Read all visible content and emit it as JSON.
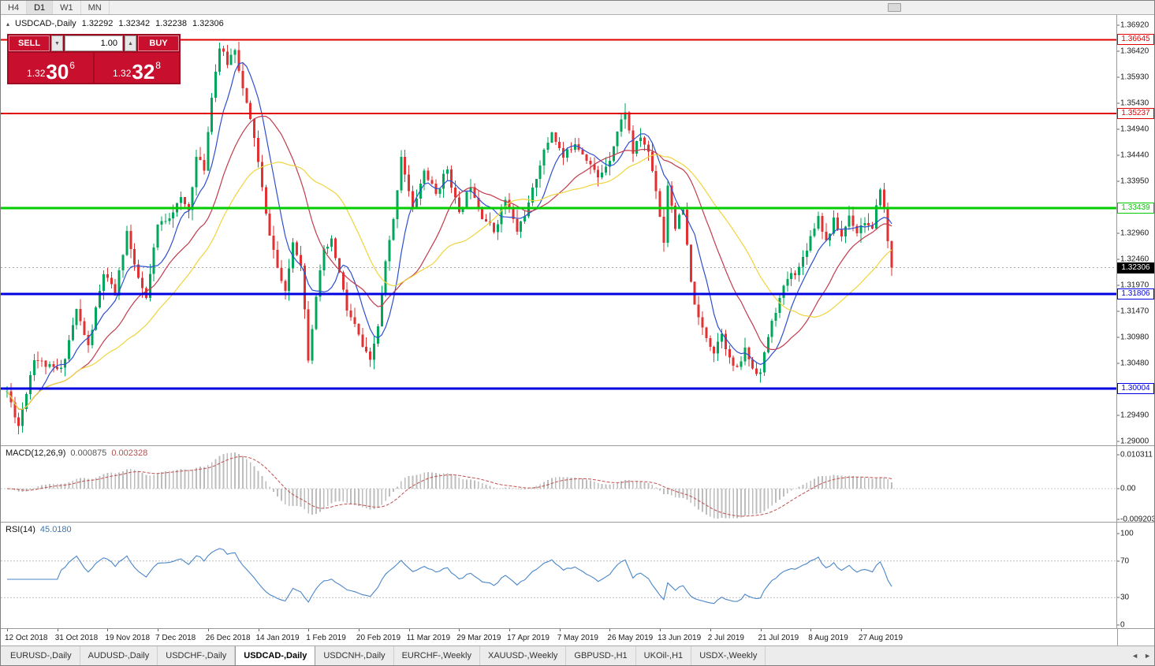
{
  "colors": {
    "up": "#00a65a",
    "down": "#e03232",
    "ma_fast": "#2e4fd0",
    "ma_mid": "#c23b4b",
    "ma_slow": "#f0d43c",
    "line_red": "#e00000",
    "line_green": "#00cc00",
    "line_blue": "#0000e0",
    "current_line": "#aaaaaa",
    "macd_hist": "#bdbdbd",
    "macd_signal": "#c05050",
    "rsi_line": "#4a86c8",
    "rsi_level": "#bbbbbb"
  },
  "icons": {
    "chart_collapse": "▴",
    "spin_down": "▼",
    "spin_up": "▲",
    "scroll_left": "◄",
    "scroll_right": "►"
  },
  "toolbar": {
    "timeframes": [
      {
        "label": "H4",
        "active": false
      },
      {
        "label": "D1",
        "active": true
      },
      {
        "label": "W1",
        "active": false
      },
      {
        "label": "MN",
        "active": false
      }
    ]
  },
  "chart_header": {
    "symbol_period": "USDCAD-,Daily",
    "open": "1.32292",
    "high": "1.32342",
    "low": "1.32238",
    "close": "1.32306"
  },
  "trade_panel": {
    "sell_label": "SELL",
    "buy_label": "BUY",
    "volume": "1.00",
    "sell_price": {
      "prefix": "1.32",
      "main": "30",
      "pip": "6"
    },
    "buy_price": {
      "prefix": "1.32",
      "main": "32",
      "pip": "8"
    }
  },
  "price_axis_labels": [
    "1.36920",
    "1.36420",
    "1.35930",
    "1.35430",
    "1.34940",
    "1.34440",
    "1.33950",
    "1.33450",
    "1.32960",
    "1.32460",
    "1.31970",
    "1.31470",
    "1.30980",
    "1.30480",
    "1.29990",
    "1.29490",
    "1.29000"
  ],
  "hlines": [
    {
      "label": "1.36645",
      "value": 1.36645,
      "color_key": "line_red",
      "width": 2
    },
    {
      "label": "1.35237",
      "value": 1.35237,
      "color_key": "line_red",
      "width": 2
    },
    {
      "label": "1.33439",
      "value": 1.33439,
      "color_key": "line_green",
      "width": 3
    },
    {
      "label": "1.31806",
      "value": 1.31806,
      "color_key": "line_blue",
      "width": 3
    },
    {
      "label": "1.30004",
      "value": 1.30004,
      "color_key": "line_blue",
      "width": 3
    }
  ],
  "current_price": {
    "label": "1.32306",
    "value": 1.32306
  },
  "indicators": {
    "macd": {
      "label": "MACD(12,26,9)",
      "value_main": "0.000875",
      "value_signal": "0.002328",
      "fast": 12,
      "slow": 26,
      "signal": 9,
      "axis": [
        {
          "text": "0.010311",
          "value": 0.010311
        },
        {
          "text": "0.00",
          "value": 0
        },
        {
          "text": "-0.0092030",
          "value": -0.009203
        }
      ]
    },
    "rsi": {
      "label": "RSI(14)",
      "value": "45.0180",
      "period": 14,
      "levels": [
        70,
        30
      ],
      "axis": [
        {
          "text": "100",
          "value": 100
        },
        {
          "text": "70",
          "value": 70
        },
        {
          "text": "30",
          "value": 30
        },
        {
          "text": "0",
          "value": 0
        }
      ]
    }
  },
  "date_axis": {
    "tick_every": 13,
    "labels": [
      "12 Oct 2018",
      "31 Oct 2018",
      "19 Nov 2018",
      "7 Dec 2018",
      "26 Dec 2018",
      "14 Jan 2019",
      "1 Feb 2019",
      "20 Feb 2019",
      "11 Mar 2019",
      "29 Mar 2019",
      "17 Apr 2019",
      "7 May 2019",
      "26 May 2019",
      "13 Jun 2019",
      "2 Jul 2019",
      "21 Jul 2019",
      "8 Aug 2019",
      "27 Aug 2019"
    ]
  },
  "tabs": {
    "items": [
      {
        "label": "EURUSD-,Daily",
        "active": false
      },
      {
        "label": "AUDUSD-,Daily",
        "active": false
      },
      {
        "label": "USDCHF-,Daily",
        "active": false
      },
      {
        "label": "USDCAD-,Daily",
        "active": true
      },
      {
        "label": "USDCNH-,Daily",
        "active": false
      },
      {
        "label": "EURCHF-,Weekly",
        "active": false
      },
      {
        "label": "XAUUSD-,Weekly",
        "active": false
      },
      {
        "label": "GBPUSD-,H1",
        "active": false
      },
      {
        "label": "UKOil-,H1",
        "active": false
      },
      {
        "label": "USDX-,Weekly",
        "active": false
      }
    ]
  },
  "chart_data": {
    "type": "candlestick",
    "symbol": "USDCAD",
    "timeframe": "Daily",
    "candle_count": 230,
    "ylim": [
      1.29,
      1.3692
    ],
    "last_close": 1.32306,
    "noise": 0.0014,
    "wick": 0.0019,
    "seed": 11,
    "price_anchors": [
      [
        0,
        1.2995
      ],
      [
        3,
        1.293
      ],
      [
        7,
        1.306
      ],
      [
        11,
        1.304
      ],
      [
        14,
        1.3035
      ],
      [
        18,
        1.315
      ],
      [
        21,
        1.308
      ],
      [
        25,
        1.322
      ],
      [
        28,
        1.318
      ],
      [
        31,
        1.33
      ],
      [
        33,
        1.323
      ],
      [
        36,
        1.317
      ],
      [
        39,
        1.331
      ],
      [
        42,
        1.333
      ],
      [
        45,
        1.336
      ],
      [
        47,
        1.334
      ],
      [
        49,
        1.344
      ],
      [
        51,
        1.342
      ],
      [
        53,
        1.356
      ],
      [
        55,
        1.365
      ],
      [
        57,
        1.362
      ],
      [
        59,
        1.365
      ],
      [
        61,
        1.357
      ],
      [
        64,
        1.348
      ],
      [
        67,
        1.333
      ],
      [
        70,
        1.323
      ],
      [
        72,
        1.318
      ],
      [
        74,
        1.328
      ],
      [
        76,
        1.324
      ],
      [
        78,
        1.306
      ],
      [
        80,
        1.318
      ],
      [
        82,
        1.326
      ],
      [
        84,
        1.328
      ],
      [
        86,
        1.322
      ],
      [
        88,
        1.315
      ],
      [
        90,
        1.312
      ],
      [
        92,
        1.308
      ],
      [
        94,
        1.305
      ],
      [
        96,
        1.312
      ],
      [
        98,
        1.324
      ],
      [
        100,
        1.332
      ],
      [
        102,
        1.3445
      ],
      [
        105,
        1.334
      ],
      [
        108,
        1.3415
      ],
      [
        111,
        1.337
      ],
      [
        114,
        1.342
      ],
      [
        117,
        1.333
      ],
      [
        120,
        1.339
      ],
      [
        123,
        1.333
      ],
      [
        126,
        1.33
      ],
      [
        129,
        1.336
      ],
      [
        132,
        1.33
      ],
      [
        135,
        1.335
      ],
      [
        138,
        1.343
      ],
      [
        141,
        1.349
      ],
      [
        144,
        1.344
      ],
      [
        147,
        1.347
      ],
      [
        150,
        1.344
      ],
      [
        153,
        1.34
      ],
      [
        156,
        1.344
      ],
      [
        158,
        1.349
      ],
      [
        160,
        1.353
      ],
      [
        162,
        1.345
      ],
      [
        164,
        1.348
      ],
      [
        166,
        1.345
      ],
      [
        168,
        1.338
      ],
      [
        170,
        1.328
      ],
      [
        171,
        1.339
      ],
      [
        173,
        1.331
      ],
      [
        175,
        1.334
      ],
      [
        177,
        1.32
      ],
      [
        179,
        1.313
      ],
      [
        181,
        1.31
      ],
      [
        183,
        1.307
      ],
      [
        185,
        1.311
      ],
      [
        187,
        1.3055
      ],
      [
        189,
        1.3035
      ],
      [
        191,
        1.3075
      ],
      [
        193,
        1.304
      ],
      [
        195,
        1.303
      ],
      [
        197,
        1.31
      ],
      [
        199,
        1.315
      ],
      [
        202,
        1.321
      ],
      [
        205,
        1.323
      ],
      [
        208,
        1.329
      ],
      [
        210,
        1.333
      ],
      [
        212,
        1.328
      ],
      [
        214,
        1.332
      ],
      [
        216,
        1.329
      ],
      [
        218,
        1.333
      ],
      [
        220,
        1.33
      ],
      [
        222,
        1.332
      ],
      [
        224,
        1.33
      ],
      [
        226,
        1.3385
      ],
      [
        227,
        1.334
      ],
      [
        228,
        1.328
      ],
      [
        229,
        1.3231
      ]
    ],
    "moving_averages": [
      {
        "period": 8,
        "color_key": "ma_fast"
      },
      {
        "period": 20,
        "color_key": "ma_mid"
      },
      {
        "period": 34,
        "color_key": "ma_slow"
      }
    ]
  }
}
